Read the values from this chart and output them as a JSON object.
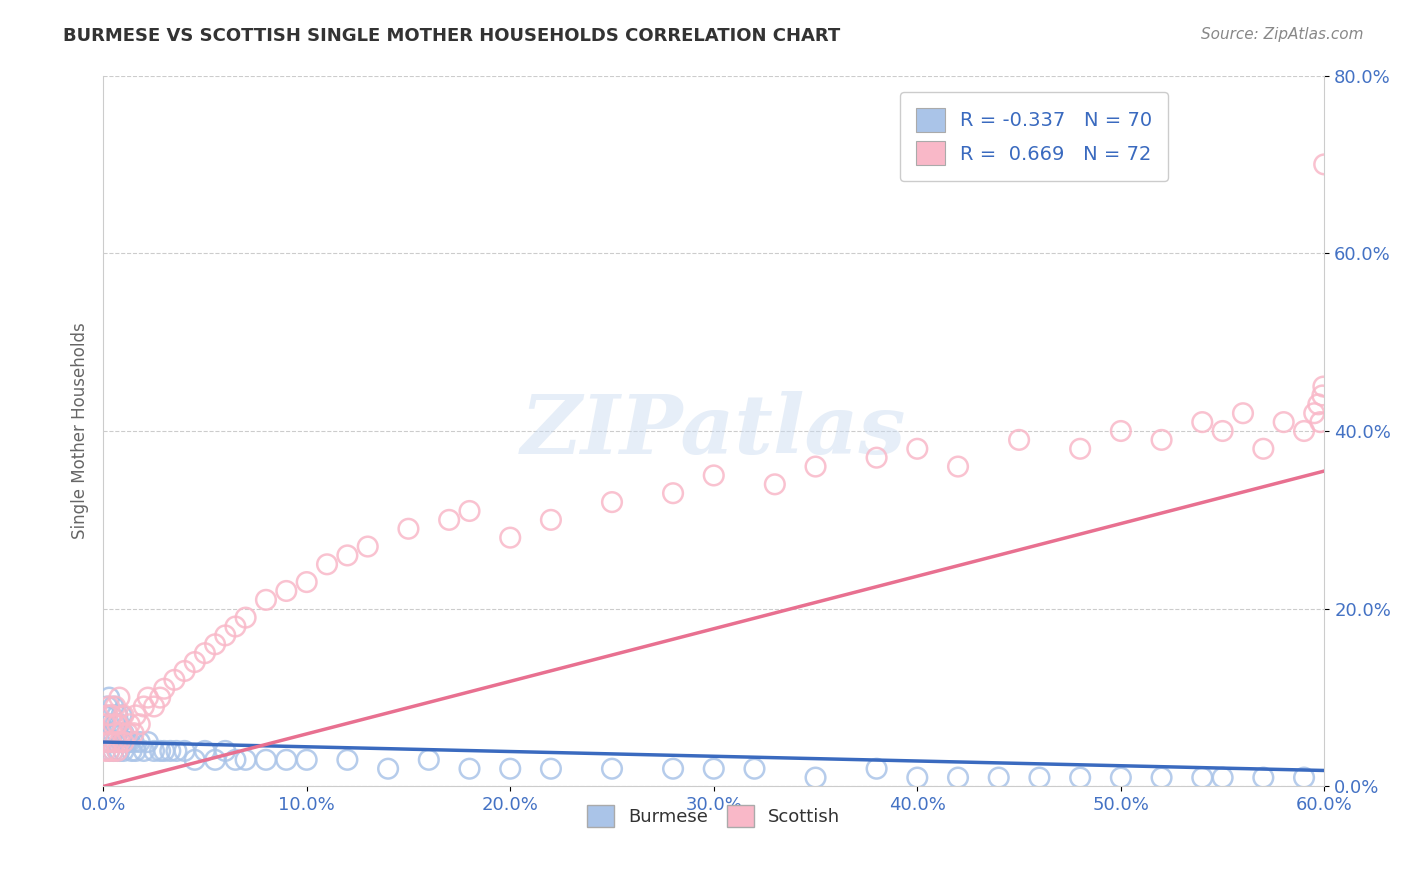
{
  "title": "BURMESE VS SCOTTISH SINGLE MOTHER HOUSEHOLDS CORRELATION CHART",
  "source": "Source: ZipAtlas.com",
  "xlim": [
    0.0,
    0.6
  ],
  "ylim": [
    0.0,
    0.8
  ],
  "ylabel": "Single Mother Households",
  "burmese_R": -0.337,
  "burmese_N": 70,
  "scottish_R": 0.669,
  "scottish_N": 72,
  "burmese_color": "#aac4e8",
  "scottish_color": "#f9b8c8",
  "burmese_line_color": "#3a6abf",
  "scottish_line_color": "#e87090",
  "legend_R_color": "#3a6abf",
  "title_color": "#333333",
  "source_color": "#888888",
  "tick_color": "#4472c4",
  "grid_color": "#cccccc",
  "background_color": "#ffffff",
  "watermark_text": "ZIPatlas",
  "burmese_x": [
    0.001,
    0.001,
    0.002,
    0.002,
    0.003,
    0.003,
    0.003,
    0.004,
    0.004,
    0.005,
    0.005,
    0.005,
    0.006,
    0.006,
    0.007,
    0.007,
    0.007,
    0.008,
    0.008,
    0.009,
    0.009,
    0.01,
    0.01,
    0.011,
    0.012,
    0.013,
    0.014,
    0.015,
    0.016,
    0.018,
    0.02,
    0.022,
    0.025,
    0.028,
    0.03,
    0.033,
    0.036,
    0.04,
    0.045,
    0.05,
    0.055,
    0.06,
    0.065,
    0.07,
    0.08,
    0.09,
    0.1,
    0.12,
    0.14,
    0.16,
    0.18,
    0.2,
    0.22,
    0.25,
    0.28,
    0.3,
    0.32,
    0.35,
    0.38,
    0.4,
    0.42,
    0.44,
    0.46,
    0.48,
    0.5,
    0.52,
    0.54,
    0.55,
    0.57,
    0.59
  ],
  "burmese_y": [
    0.06,
    0.08,
    0.05,
    0.09,
    0.04,
    0.07,
    0.1,
    0.05,
    0.08,
    0.04,
    0.06,
    0.09,
    0.05,
    0.07,
    0.04,
    0.06,
    0.08,
    0.04,
    0.07,
    0.05,
    0.08,
    0.04,
    0.06,
    0.05,
    0.05,
    0.05,
    0.04,
    0.05,
    0.04,
    0.05,
    0.04,
    0.05,
    0.04,
    0.04,
    0.04,
    0.04,
    0.04,
    0.04,
    0.03,
    0.04,
    0.03,
    0.04,
    0.03,
    0.03,
    0.03,
    0.03,
    0.03,
    0.03,
    0.02,
    0.03,
    0.02,
    0.02,
    0.02,
    0.02,
    0.02,
    0.02,
    0.02,
    0.01,
    0.02,
    0.01,
    0.01,
    0.01,
    0.01,
    0.01,
    0.01,
    0.01,
    0.01,
    0.01,
    0.01,
    0.01
  ],
  "scottish_x": [
    0.001,
    0.001,
    0.002,
    0.002,
    0.003,
    0.003,
    0.004,
    0.004,
    0.005,
    0.005,
    0.006,
    0.006,
    0.007,
    0.007,
    0.008,
    0.008,
    0.009,
    0.01,
    0.01,
    0.012,
    0.013,
    0.015,
    0.016,
    0.018,
    0.02,
    0.022,
    0.025,
    0.028,
    0.03,
    0.035,
    0.04,
    0.045,
    0.05,
    0.055,
    0.06,
    0.065,
    0.07,
    0.08,
    0.09,
    0.1,
    0.11,
    0.12,
    0.13,
    0.15,
    0.17,
    0.18,
    0.2,
    0.22,
    0.25,
    0.28,
    0.3,
    0.33,
    0.35,
    0.38,
    0.4,
    0.42,
    0.45,
    0.48,
    0.5,
    0.52,
    0.54,
    0.55,
    0.56,
    0.57,
    0.58,
    0.59,
    0.595,
    0.597,
    0.598,
    0.599,
    0.5995,
    0.5999
  ],
  "scottish_y": [
    0.04,
    0.07,
    0.05,
    0.08,
    0.04,
    0.09,
    0.05,
    0.08,
    0.04,
    0.07,
    0.05,
    0.09,
    0.04,
    0.07,
    0.05,
    0.1,
    0.06,
    0.05,
    0.08,
    0.06,
    0.07,
    0.06,
    0.08,
    0.07,
    0.09,
    0.1,
    0.09,
    0.1,
    0.11,
    0.12,
    0.13,
    0.14,
    0.15,
    0.16,
    0.17,
    0.18,
    0.19,
    0.21,
    0.22,
    0.23,
    0.25,
    0.26,
    0.27,
    0.29,
    0.3,
    0.31,
    0.28,
    0.3,
    0.32,
    0.33,
    0.35,
    0.34,
    0.36,
    0.37,
    0.38,
    0.36,
    0.39,
    0.38,
    0.4,
    0.39,
    0.41,
    0.4,
    0.42,
    0.38,
    0.41,
    0.4,
    0.42,
    0.43,
    0.41,
    0.44,
    0.45,
    0.7
  ]
}
